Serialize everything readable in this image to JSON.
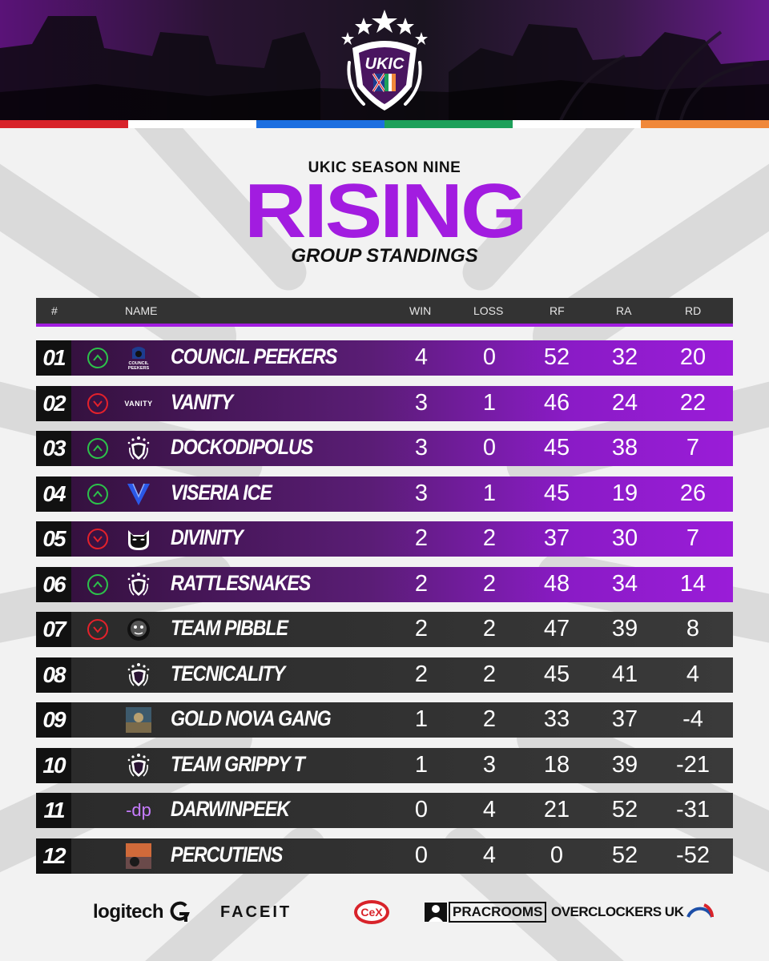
{
  "header": {
    "logo_text": "UKIC",
    "color_bar": [
      "#d8232a",
      "#ffffff",
      "#1d6fe0",
      "#1ea05a",
      "#ffffff",
      "#f0883a"
    ]
  },
  "titles": {
    "subtitle": "UKIC SEASON NINE",
    "title": "RISING",
    "title2": "GROUP STANDINGS"
  },
  "columns": {
    "rank": "#",
    "name": "NAME",
    "win": "WIN",
    "loss": "LOSS",
    "rf": "RF",
    "ra": "RA",
    "rd": "RD"
  },
  "colors": {
    "accent": "#a21ce0",
    "up": "#2cc24a",
    "down": "#e4212b"
  },
  "standings": [
    {
      "rank": "01",
      "trend": "up",
      "logo": "council-peekers-logo",
      "logo_text": "COUNCIL PEEKERS",
      "name": "COUNCIL PEEKERS",
      "win": "4",
      "loss": "0",
      "rf": "52",
      "ra": "32",
      "rd": "20",
      "highlight": true
    },
    {
      "rank": "02",
      "trend": "down",
      "logo": "vanity-logo",
      "logo_text": "VANITY",
      "name": "VANITY",
      "win": "3",
      "loss": "1",
      "rf": "46",
      "ra": "24",
      "rd": "22",
      "highlight": true
    },
    {
      "rank": "03",
      "trend": "up",
      "logo": "ukic-shield-logo",
      "name": "DOCKODIPOLUS",
      "win": "3",
      "loss": "0",
      "rf": "45",
      "ra": "38",
      "rd": "7",
      "highlight": true
    },
    {
      "rank": "04",
      "trend": "up",
      "logo": "viseria-ice-logo",
      "name": "VISERIA ICE",
      "win": "3",
      "loss": "1",
      "rf": "45",
      "ra": "19",
      "rd": "26",
      "highlight": true
    },
    {
      "rank": "05",
      "trend": "down",
      "logo": "divinity-logo",
      "name": "DIVINITY",
      "win": "2",
      "loss": "2",
      "rf": "37",
      "ra": "30",
      "rd": "7",
      "highlight": true
    },
    {
      "rank": "06",
      "trend": "up",
      "logo": "ukic-shield-logo",
      "name": "RATTLESNAKES",
      "win": "2",
      "loss": "2",
      "rf": "48",
      "ra": "34",
      "rd": "14",
      "highlight": true
    },
    {
      "rank": "07",
      "trend": "down",
      "logo": "team-pibble-logo",
      "name": "TEAM PIBBLE",
      "win": "2",
      "loss": "2",
      "rf": "47",
      "ra": "39",
      "rd": "8",
      "highlight": false
    },
    {
      "rank": "08",
      "trend": "none",
      "logo": "ukic-shield-logo",
      "name": "TECNICALITY",
      "win": "2",
      "loss": "2",
      "rf": "45",
      "ra": "41",
      "rd": "4",
      "highlight": false
    },
    {
      "rank": "09",
      "trend": "none",
      "logo": "gold-nova-gang-logo",
      "name": "GOLD NOVA GANG",
      "win": "1",
      "loss": "2",
      "rf": "33",
      "ra": "37",
      "rd": "-4",
      "highlight": false
    },
    {
      "rank": "10",
      "trend": "none",
      "logo": "ukic-shield-logo",
      "name": "TEAM GRIPPY T",
      "win": "1",
      "loss": "3",
      "rf": "18",
      "ra": "39",
      "rd": "-21",
      "highlight": false
    },
    {
      "rank": "11",
      "trend": "none",
      "logo": "darwinpeek-logo",
      "logo_text": "-dp",
      "name": "DARWINPEEK",
      "win": "0",
      "loss": "4",
      "rf": "21",
      "ra": "52",
      "rd": "-31",
      "highlight": false
    },
    {
      "rank": "12",
      "trend": "none",
      "logo": "percutiens-logo",
      "name": "PERCUTIENS",
      "win": "0",
      "loss": "4",
      "rf": "0",
      "ra": "52",
      "rd": "-52",
      "highlight": false
    }
  ],
  "sponsors": {
    "logitech": "logitech",
    "faceit": "FACEIT",
    "cex": "CeX",
    "pracrooms": "PRACROOMS",
    "overclockers": "OVERCLOCKERS UK"
  }
}
